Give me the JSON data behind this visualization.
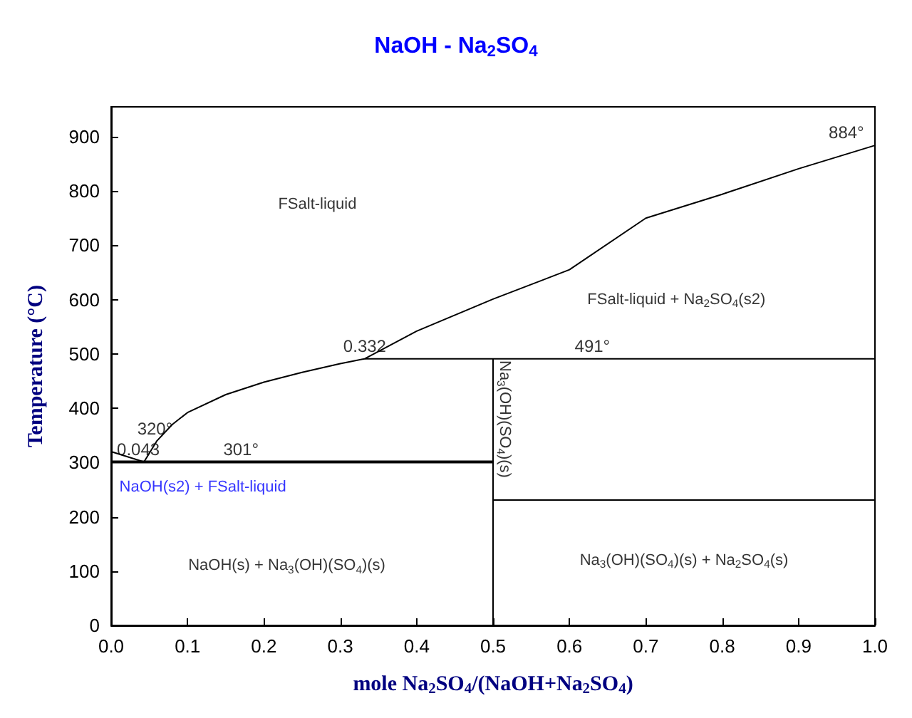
{
  "chart_data": {
    "type": "line",
    "title": "NaOH - Na$_{2}$SO$_{4}$",
    "xlabel": "mole Na$_{2}$SO$_{4}$/(NaOH+Na$_{2}$SO$_{4}$)",
    "ylabel": "Temperature (°C)",
    "xlim": [
      0,
      1
    ],
    "ylim": [
      0,
      955
    ],
    "xticks": [
      {
        "value": 0,
        "label": "0.0"
      },
      0.1,
      0.2,
      0.3,
      0.4,
      0.5,
      0.6,
      0.7,
      0.8,
      0.9,
      {
        "value": 1,
        "label": "1.0"
      }
    ],
    "yticks": [
      0,
      100,
      200,
      300,
      400,
      500,
      600,
      700,
      800,
      900
    ],
    "grid": false,
    "marker": "none",
    "line_style": "solid",
    "series": [
      {
        "color": "#000000",
        "x": [
          0,
          0.043
        ],
        "values": [
          320,
          301
        ]
      },
      {
        "color": "#000000",
        "x": [
          0.043,
          0.06,
          0.08,
          0.1,
          0.15,
          0.2,
          0.25,
          0.3,
          0.332,
          0.4,
          0.5,
          0.6,
          0.7,
          0.8,
          0.9,
          1.0
        ],
        "values": [
          301,
          340,
          370,
          392,
          425,
          448,
          466,
          482,
          491,
          542,
          601,
          655,
          750,
          794,
          841,
          884
        ]
      },
      {
        "color": "#000000",
        "x": [
          0,
          0.5
        ],
        "values": [
          301,
          301
        ]
      },
      {
        "color": "#000000",
        "x": [
          0.332,
          1
        ],
        "values": [
          491,
          491
        ]
      },
      {
        "color": "#000000",
        "x": [
          0.5,
          0.5
        ],
        "values": [
          0,
          491
        ]
      },
      {
        "color": "#000000",
        "x": [
          0.5,
          1
        ],
        "values": [
          231,
          231
        ]
      }
    ],
    "annotations": [
      {
        "text": "320°",
        "x": 0.02,
        "y": 320
      },
      {
        "text": "0.043",
        "x": 0.043,
        "y": 301
      },
      {
        "text": "301°",
        "x": 0.17,
        "y": 301
      },
      {
        "text": "0.332",
        "x": 0.332,
        "y": 491
      },
      {
        "text": "491°",
        "x": 0.63,
        "y": 491
      },
      {
        "text": "884°",
        "x": 0.97,
        "y": 884
      },
      "FSalt-liquid",
      "FSalt-liquid + Na$_{2}$SO$_{4}$(s2)",
      "NaOH(s2) + FSalt-liquid",
      "NaOH(s) + Na$_{3}$(OH)(SO$_{4}$)(s)",
      "Na$_{3}$(OH)(SO$_{4}$)(s) + Na$_{2}$SO$_{4}$(s)",
      "Na$_{3}$(OH)(SO$_{4}$)(s)"
    ]
  }
}
